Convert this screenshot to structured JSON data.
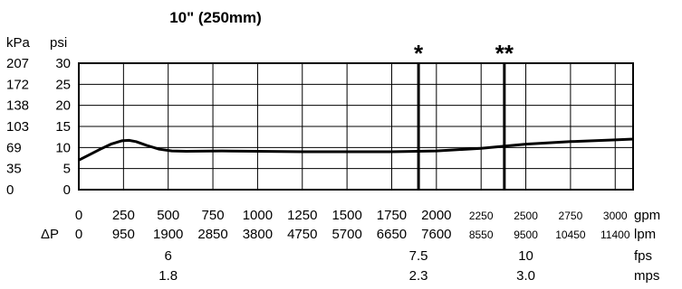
{
  "chart_data": {
    "type": "line",
    "title": "10\" (250mm)",
    "y_units": {
      "kpa": "kPa",
      "psi": "psi"
    },
    "y_ticks_kpa": [
      "0",
      "35",
      "69",
      "103",
      "138",
      "172",
      "207"
    ],
    "y_ticks_psi": [
      "0",
      "5",
      "10",
      "15",
      "20",
      "25",
      "30"
    ],
    "ylim_psi": [
      0,
      30
    ],
    "xlim_gpm": [
      0,
      3100
    ],
    "grid": true,
    "delta_p_label": "ΔP",
    "x_scales": [
      {
        "unit": "gpm",
        "ticks": [
          {
            "v": 0,
            "t": "0"
          },
          {
            "v": 250,
            "t": "250"
          },
          {
            "v": 500,
            "t": "500"
          },
          {
            "v": 750,
            "t": "750"
          },
          {
            "v": 1000,
            "t": "1000"
          },
          {
            "v": 1250,
            "t": "1250"
          },
          {
            "v": 1500,
            "t": "1500"
          },
          {
            "v": 1750,
            "t": "1750"
          },
          {
            "v": 2000,
            "t": "2000"
          },
          {
            "v": 2250,
            "t": "2250"
          },
          {
            "v": 2500,
            "t": "2500"
          },
          {
            "v": 2750,
            "t": "2750"
          },
          {
            "v": 3000,
            "t": "3000"
          }
        ]
      },
      {
        "unit": "lpm",
        "ticks": [
          {
            "v": 0,
            "t": "0"
          },
          {
            "v": 250,
            "t": "950"
          },
          {
            "v": 500,
            "t": "1900"
          },
          {
            "v": 750,
            "t": "2850"
          },
          {
            "v": 1000,
            "t": "3800"
          },
          {
            "v": 1250,
            "t": "4750"
          },
          {
            "v": 1500,
            "t": "5700"
          },
          {
            "v": 1750,
            "t": "6650"
          },
          {
            "v": 2000,
            "t": "7600"
          },
          {
            "v": 2250,
            "t": "8550"
          },
          {
            "v": 2500,
            "t": "9500"
          },
          {
            "v": 2750,
            "t": "10450"
          },
          {
            "v": 3000,
            "t": "11400"
          }
        ]
      },
      {
        "unit": "fps",
        "ticks": [
          {
            "v": 500,
            "t": "6"
          },
          {
            "v": 1900,
            "t": "7.5"
          },
          {
            "v": 2500,
            "t": "10"
          }
        ]
      },
      {
        "unit": "mps",
        "ticks": [
          {
            "v": 500,
            "t": "1.8"
          },
          {
            "v": 1900,
            "t": "2.3"
          },
          {
            "v": 2500,
            "t": "3.0"
          }
        ]
      }
    ],
    "series": [
      {
        "points": [
          [
            0,
            7
          ],
          [
            60,
            8.3
          ],
          [
            120,
            9.6
          ],
          [
            180,
            10.8
          ],
          [
            240,
            11.6
          ],
          [
            280,
            11.7
          ],
          [
            320,
            11.4
          ],
          [
            380,
            10.5
          ],
          [
            450,
            9.6
          ],
          [
            520,
            9.2
          ],
          [
            600,
            9.1
          ],
          [
            800,
            9.2
          ],
          [
            1000,
            9.1
          ],
          [
            1250,
            9.0
          ],
          [
            1500,
            9.0
          ],
          [
            1750,
            9.0
          ],
          [
            2000,
            9.2
          ],
          [
            2250,
            9.8
          ],
          [
            2500,
            10.8
          ],
          [
            2750,
            11.4
          ],
          [
            3000,
            11.8
          ],
          [
            3100,
            12.0
          ]
        ]
      }
    ],
    "markers": [
      {
        "gpm": 1900,
        "label": "*"
      },
      {
        "gpm": 2380,
        "label": "**"
      }
    ]
  }
}
